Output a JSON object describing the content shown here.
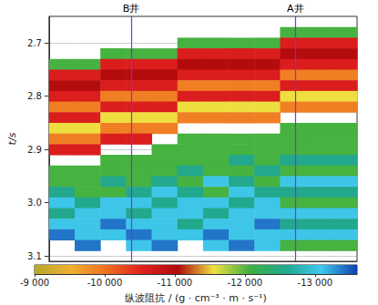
{
  "chart_data": {
    "type": "heatmap",
    "y_label": "t/s",
    "x": [
      0.5,
      1.5,
      2.5,
      3.5,
      4.5,
      5.5,
      6.5,
      7.5,
      8.5,
      9.5,
      10.5,
      11.5
    ],
    "t": [
      2.66,
      2.68,
      2.7,
      2.72,
      2.74,
      2.76,
      2.78,
      2.8,
      2.82,
      2.84,
      2.86,
      2.88,
      2.9,
      2.92,
      2.94,
      2.96,
      2.98,
      3.0,
      3.02,
      3.04,
      3.06,
      3.08,
      3.1
    ],
    "xlim": [
      0,
      12
    ],
    "ylim": [
      2.65,
      3.11
    ],
    "yticks": [
      2.7,
      2.8,
      2.9,
      {
        "value": 3,
        "label": "3.0"
      },
      3.1
    ],
    "tick_labels": "y",
    "grid": true,
    "values": [
      [
        null,
        null,
        null,
        null,
        null,
        null,
        null,
        null,
        null,
        null,
        null,
        null
      ],
      [
        null,
        null,
        null,
        null,
        null,
        null,
        null,
        null,
        null,
        -12050,
        -12050,
        -12050
      ],
      [
        null,
        null,
        null,
        null,
        null,
        -12050,
        -12050,
        -12050,
        -12050,
        -10600,
        -10600,
        -10600
      ],
      [
        null,
        null,
        -12050,
        -12050,
        -12050,
        -10600,
        -10600,
        -10600,
        -10600,
        -11000,
        -11000,
        -11000
      ],
      [
        -12050,
        -12050,
        -10600,
        -10600,
        -10600,
        -11000,
        -11000,
        -11000,
        -11000,
        -10600,
        -10600,
        -10600
      ],
      [
        -10600,
        -10600,
        -11000,
        -11000,
        -11000,
        -10600,
        -10600,
        -10600,
        -10600,
        -9900,
        -9900,
        -9900
      ],
      [
        -11000,
        -11000,
        -10600,
        -10600,
        -10600,
        -9900,
        -9900,
        -9900,
        -9900,
        -10600,
        -10600,
        -10600
      ],
      [
        -10600,
        -10600,
        -9900,
        -9900,
        -9900,
        -10600,
        -10600,
        -10600,
        -10600,
        -11550,
        -11550,
        -11550
      ],
      [
        -9900,
        -9900,
        -10600,
        -10600,
        -10600,
        -11550,
        -11550,
        -11550,
        -11550,
        -9900,
        -9900,
        -9900
      ],
      [
        -10600,
        -10600,
        -11550,
        -11550,
        -11550,
        -9900,
        -9900,
        -9900,
        -9900,
        null,
        null,
        null
      ],
      [
        -11550,
        -11550,
        -9900,
        -9900,
        -9900,
        null,
        null,
        null,
        null,
        -12050,
        -12050,
        -12050
      ],
      [
        -9900,
        -9900,
        -10600,
        -10600,
        null,
        -12050,
        -12050,
        -12050,
        -12050,
        -12050,
        -12050,
        -12050
      ],
      [
        -10600,
        -10600,
        null,
        null,
        -12050,
        -12050,
        -12050,
        -12050,
        -12050,
        -12050,
        -12050,
        -12050
      ],
      [
        null,
        null,
        -12050,
        -12050,
        -12050,
        -12050,
        -12050,
        -12550,
        -12050,
        -12550,
        -12550,
        -12550
      ],
      [
        -12050,
        -12050,
        -12050,
        -12050,
        -12050,
        -12550,
        -12050,
        -12050,
        -12550,
        -12050,
        -12050,
        -12050
      ],
      [
        -12050,
        -12050,
        -12550,
        -12050,
        -12550,
        -12050,
        -13050,
        -12550,
        -12050,
        -13050,
        -13050,
        -13050
      ],
      [
        -12550,
        -12050,
        -12050,
        -12550,
        -13050,
        -12550,
        -12050,
        -13050,
        -12550,
        -12550,
        -12550,
        -12550
      ],
      [
        -13050,
        -12550,
        -13050,
        -13050,
        -12550,
        -13050,
        -13050,
        -12550,
        -13050,
        -12050,
        -12050,
        -12050
      ],
      [
        -12550,
        -13050,
        -13050,
        -12550,
        -13050,
        -13050,
        -12550,
        -13050,
        -13050,
        -13050,
        -13050,
        -13050
      ],
      [
        -13050,
        -13050,
        -13400,
        -13050,
        -13050,
        -12550,
        -13050,
        -13050,
        -13400,
        -12550,
        -12550,
        -12550
      ],
      [
        -13400,
        -13050,
        -13050,
        -13400,
        -13050,
        -13050,
        -13400,
        -13050,
        -13050,
        -13050,
        -13050,
        -13050
      ],
      [
        null,
        -13400,
        null,
        -13050,
        -13400,
        null,
        -13050,
        -13400,
        -13050,
        -12050,
        -12050,
        -12050
      ],
      [
        null,
        null,
        null,
        null,
        null,
        null,
        null,
        null,
        null,
        null,
        null,
        null
      ]
    ],
    "annotations": [
      {
        "text": "B井",
        "x": 3.2
      },
      {
        "text": "A井",
        "x": 9.6
      }
    ],
    "colorbar": {
      "title": "纵波阻抗 / (g · cm⁻³ · m · s⁻¹)",
      "range": [
        -9000,
        -13600
      ],
      "ticks": [
        {
          "value": -9000,
          "label": "-9 000"
        },
        {
          "value": -10000,
          "label": "-10 000"
        },
        {
          "value": -11000,
          "label": "-11 000"
        },
        {
          "value": -12000,
          "label": "-12 000"
        },
        {
          "value": -13000,
          "label": "-13 000"
        }
      ]
    }
  }
}
